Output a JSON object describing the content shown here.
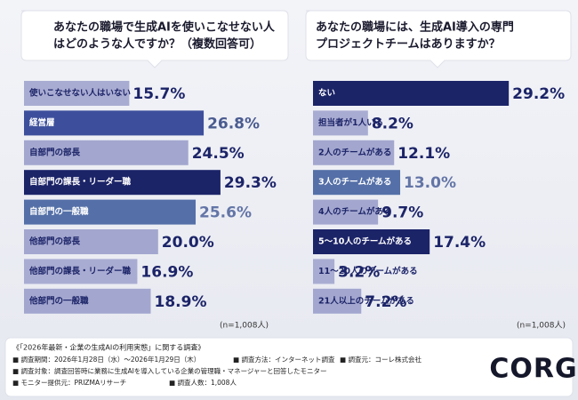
{
  "chart_data": [
    {
      "type": "bar",
      "orientation": "horizontal",
      "title": [
        "あなたの職場で生成AIを使いこなせない人",
        "はどのような人ですか？（複数回答可）"
      ],
      "categories": [
        "使いこなせない人はいない",
        "経営層",
        "自部門の部長",
        "自部門の課長・リーダー職",
        "自部門の一般職",
        "他部門の部長",
        "他部門の課長・リーダー職",
        "他部門の一般職"
      ],
      "values": [
        15.7,
        26.8,
        24.5,
        29.3,
        25.6,
        20.0,
        16.9,
        18.9
      ],
      "value_labels": [
        "15.7%",
        "26.8%",
        "24.5%",
        "29.3%",
        "25.6%",
        "20.0%",
        "16.9%",
        "18.9%"
      ],
      "colors": [
        "#a9acd2",
        "#3d4f9c",
        "#a3a7cf",
        "#1c2468",
        "#5570a8",
        "#a3a7cf",
        "#a9acd2",
        "#a3a7cf"
      ],
      "value_label_colors": [
        "#1c2468",
        "#4a5b8f",
        "#1c2468",
        "#1c2468",
        "#6375a6",
        "#1c2468",
        "#1c2468",
        "#1c2468"
      ],
      "note": "(n=1,008人)"
    },
    {
      "type": "bar",
      "orientation": "horizontal",
      "title": [
        "あなたの職場には、生成AI導入の専門",
        "プロジェクトチームはありますか？"
      ],
      "categories": [
        "ない",
        "担当者が1人いる",
        "2人のチームがある",
        "3人のチームがある",
        "4人のチームがある",
        "5〜10人のチームがある",
        "11〜20人のチームがある",
        "21人以上のチームがある"
      ],
      "values": [
        29.2,
        8.2,
        12.1,
        13.0,
        9.7,
        17.4,
        3.2,
        7.2
      ],
      "value_labels": [
        "29.2%",
        "8.2%",
        "12.1%",
        "13.0%",
        "9.7%",
        "17.4%",
        "3.2%",
        "7.2%"
      ],
      "colors": [
        "#1c2468",
        "#a9acd2",
        "#a3a7cf",
        "#5570a8",
        "#a3a7cf",
        "#1c2468",
        "#a9acd2",
        "#a3a7cf"
      ],
      "value_label_colors": [
        "#1c2468",
        "#1c2468",
        "#1c2468",
        "#6375a6",
        "#1c2468",
        "#1c2468",
        "#1c2468",
        "#1c2468"
      ],
      "note": "(n=1,008人)"
    }
  ],
  "footer": {
    "heading": "《「2026年最新・企業の生成AIの利用実態」に関する調査》",
    "items": [
      [
        "■ 調査期間：2026年1月28日（水）～2026年1月29日（木）",
        "■ 調査方法：インターネット調査",
        "■ 調査元：コーレ株式会社"
      ],
      [
        "■ 調査対象：調査回答時に業務に生成AIを導入している企業の管理職・マネージャーと回答したモニター"
      ],
      [
        "■ モニター提供元：PRIZMAリサーチ",
        "■ 調査人数：1,008人"
      ]
    ]
  },
  "logo": "CORG"
}
